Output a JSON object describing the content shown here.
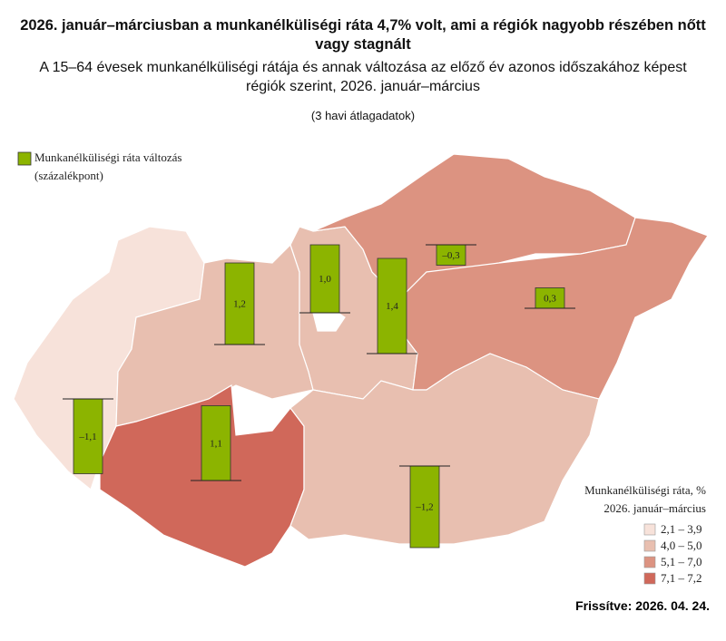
{
  "map": {
    "header": {
      "title": "2026. január–márciusban a munkanélküliségi ráta 4,7% volt, ami a régiók nagyobb részében nőtt vagy stagnált",
      "subtitle": "A 15–64 évesek munkanélküliségi rátája és annak változása az előző év azonos időszakához képest régiók szerint, 2026. január–március",
      "note": "(3 havi átlagadatok)"
    },
    "bars": {
      "legend": "Munkanélküliségi ráta változás (százalékpont)",
      "color": "#8cb400",
      "values": [
        1.2,
        1.0,
        1.4,
        -0.3,
        0.3,
        -1.1,
        1.1,
        -1.2
      ],
      "value_labels": [
        "1,2",
        "1,0",
        "1,4",
        "–0,3",
        "0,3",
        "–1,1",
        "1,1",
        "–1,2"
      ]
    },
    "legend": {
      "title": "Munkanélküliségi ráta, %",
      "subtitle": "2026. január–március",
      "classes": [
        {
          "label": "2,1 – 3,9",
          "color": "#f7e2da"
        },
        {
          "label": "4,0 – 5,0",
          "color": "#e8bfb0"
        },
        {
          "label": "5,1 – 7,0",
          "color": "#dc9381"
        },
        {
          "label": "7,1 – 7,2",
          "color": "#d0685a"
        }
      ]
    },
    "footer": "Frissítve: 2026. 04. 24."
  }
}
